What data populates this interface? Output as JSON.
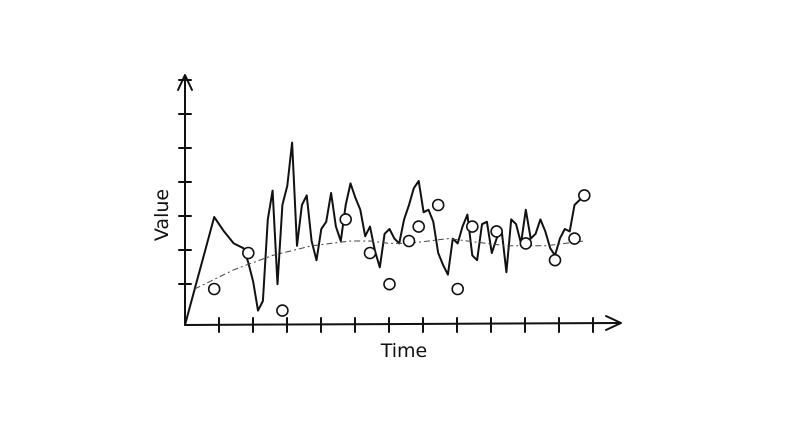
{
  "chart_data": {
    "type": "line",
    "xlabel": "Time",
    "ylabel": "Value",
    "xlim": [
      0,
      42
    ],
    "ylim": [
      0,
      10
    ],
    "x_ticks": 12,
    "y_ticks": 7,
    "grid": false,
    "series": [
      {
        "style": "solid",
        "x": [
          0,
          1,
          2,
          3,
          4,
          5,
          6,
          6.5,
          7,
          7.5,
          8,
          8.5,
          9,
          9.5,
          10,
          10.5,
          11,
          11.5,
          12,
          12.5,
          13,
          13.5,
          14,
          14.5,
          15,
          15.5,
          16,
          16.5,
          17,
          17.5,
          18,
          18.5,
          19,
          19.5,
          20,
          20.5,
          21,
          21.5,
          22,
          22.5,
          23,
          23.5,
          24,
          24.5,
          25,
          25.5,
          26,
          26.5,
          27,
          27.5,
          28,
          28.5,
          29,
          29.5,
          30,
          30.5,
          31,
          31.5,
          32,
          32.5,
          33,
          33.5,
          34,
          34.5,
          35,
          35.5,
          36,
          36.5,
          37,
          37.5,
          38,
          38.5,
          39,
          39.5,
          40,
          41
        ],
        "values": [
          0,
          1.5,
          3.0,
          4.5,
          3.9,
          3.4,
          3.2,
          2.6,
          1.8,
          0.6,
          1.0,
          4.4,
          5.6,
          1.7,
          5.0,
          5.8,
          7.6,
          3.3,
          5.0,
          5.4,
          3.5,
          2.7,
          4.0,
          4.3,
          5.5,
          4.1,
          3.5,
          5.0,
          5.9,
          5.3,
          4.8,
          3.7,
          4.1,
          3.1,
          2.4,
          3.8,
          4.0,
          3.6,
          3.4,
          4.4,
          5.0,
          5.7,
          6.0,
          4.7,
          4.8,
          4.3,
          3.0,
          2.5,
          2.1,
          3.6,
          3.4,
          4.1,
          4.6,
          2.9,
          2.7,
          4.2,
          4.3,
          3.0,
          3.6,
          4.0,
          2.2,
          4.4,
          4.2,
          3.4,
          4.8,
          3.6,
          3.8,
          4.4,
          3.9,
          3.2,
          2.9,
          3.6,
          4.0,
          3.9,
          5.0,
          5.4
        ]
      },
      {
        "style": "dashed",
        "x": [
          1,
          3,
          5,
          7,
          9,
          11,
          13,
          15,
          17,
          19,
          21,
          23,
          25,
          27,
          29,
          31,
          33,
          35,
          37,
          39,
          41
        ],
        "values": [
          1.5,
          1.9,
          2.3,
          2.6,
          2.9,
          3.1,
          3.3,
          3.4,
          3.5,
          3.5,
          3.4,
          3.4,
          3.5,
          3.6,
          3.5,
          3.4,
          3.3,
          3.3,
          3.3,
          3.4,
          3.5
        ]
      }
    ],
    "markers": {
      "x": [
        3,
        6.5,
        10,
        16.5,
        19,
        21,
        23,
        24,
        26,
        28,
        29.5,
        32,
        35,
        38,
        40,
        41
      ],
      "values": [
        1.5,
        3.0,
        0.6,
        4.4,
        3.0,
        1.7,
        3.5,
        4.1,
        5.0,
        1.5,
        4.1,
        3.9,
        3.4,
        2.7,
        3.6,
        5.4
      ]
    }
  }
}
